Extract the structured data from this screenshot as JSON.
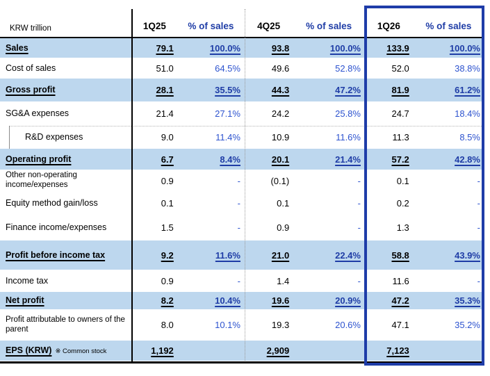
{
  "table": {
    "unit_label": "KRW trillion",
    "groups": [
      {
        "period": "1Q25",
        "pct_header": "% of sales",
        "highlighted": false
      },
      {
        "period": "4Q25",
        "pct_header": "% of sales",
        "highlighted": false
      },
      {
        "period": "1Q26",
        "pct_header": "% of sales",
        "highlighted": true
      }
    ],
    "rows": [
      {
        "label": "Sales",
        "emphasis": true,
        "indent": false,
        "values": [
          "79.1",
          "93.8",
          "133.9"
        ],
        "pcts": [
          "100.0%",
          "100.0%",
          "100.0%"
        ]
      },
      {
        "label": "Cost of sales",
        "emphasis": false,
        "indent": false,
        "values": [
          "51.0",
          "49.6",
          "52.0"
        ],
        "pcts": [
          "64.5%",
          "52.8%",
          "38.8%"
        ]
      },
      {
        "label": "Gross profit",
        "emphasis": true,
        "indent": false,
        "values": [
          "28.1",
          "44.3",
          "81.9"
        ],
        "pcts": [
          "35.5%",
          "47.2%",
          "61.2%"
        ]
      },
      {
        "label": "SG&A expenses",
        "emphasis": false,
        "indent": false,
        "values": [
          "21.4",
          "24.2",
          "24.7"
        ],
        "pcts": [
          "27.1%",
          "25.8%",
          "18.4%"
        ]
      },
      {
        "label": "R&D expenses",
        "emphasis": false,
        "indent": true,
        "values": [
          "9.0",
          "10.9",
          "11.3"
        ],
        "pcts": [
          "11.4%",
          "11.6%",
          "8.5%"
        ]
      },
      {
        "label": "Operating profit",
        "emphasis": true,
        "indent": false,
        "values": [
          "6.7",
          "20.1",
          "57.2"
        ],
        "pcts": [
          "8.4%",
          "21.4%",
          "42.8%"
        ]
      },
      {
        "label": "Other non-operating income/expenses",
        "emphasis": false,
        "indent": false,
        "values": [
          "0.9",
          "(0.1)",
          "0.1"
        ],
        "pcts": [
          "-",
          "-",
          "-"
        ]
      },
      {
        "label": "Equity method gain/loss",
        "emphasis": false,
        "indent": false,
        "values": [
          "0.1",
          "0.1",
          "0.2"
        ],
        "pcts": [
          "-",
          "-",
          "-"
        ]
      },
      {
        "label": "Finance income/expenses",
        "emphasis": false,
        "indent": false,
        "values": [
          "1.5",
          "0.9",
          "1.3"
        ],
        "pcts": [
          "-",
          "-",
          "-"
        ]
      },
      {
        "label": "Profit before income tax",
        "emphasis": true,
        "indent": false,
        "values": [
          "9.2",
          "21.0",
          "58.8"
        ],
        "pcts": [
          "11.6%",
          "22.4%",
          "43.9%"
        ]
      },
      {
        "label": "Income tax",
        "emphasis": false,
        "indent": false,
        "values": [
          "0.9",
          "1.4",
          "11.6"
        ],
        "pcts": [
          "-",
          "-",
          "-"
        ]
      },
      {
        "label": "Net profit",
        "emphasis": true,
        "indent": false,
        "values": [
          "8.2",
          "19.6",
          "47.2"
        ],
        "pcts": [
          "10.4%",
          "20.9%",
          "35.3%"
        ]
      },
      {
        "label": "Profit attributable to owners of the parent",
        "emphasis": false,
        "indent": false,
        "values": [
          "8.0",
          "19.3",
          "47.1"
        ],
        "pcts": [
          "10.1%",
          "20.6%",
          "35.2%"
        ]
      },
      {
        "label": "EPS (KRW)",
        "note": "※ Common stock",
        "emphasis": true,
        "indent": false,
        "values": [
          "1,192",
          "2,909",
          "7,123"
        ],
        "pcts": [
          "",
          "",
          ""
        ]
      }
    ]
  },
  "colors": {
    "row_highlight": "#bdd7ee",
    "pct_text": "#2d53cf",
    "emphasis_blue": "#1f3da6",
    "highlight_border": "#1e3ca8"
  }
}
